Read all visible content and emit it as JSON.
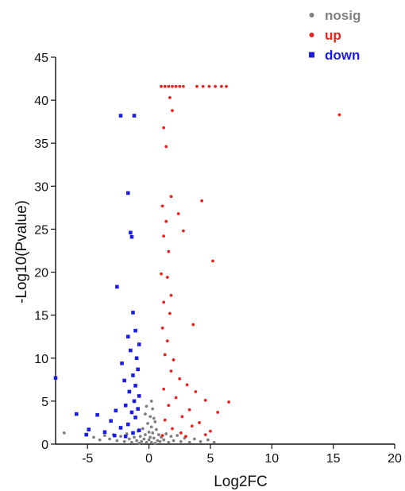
{
  "chart_data": {
    "type": "scatter",
    "xlabel": "Log2FC",
    "ylabel": "-Log10(Pvalue)",
    "xlim": [
      -7.6,
      20
    ],
    "ylim": [
      0,
      45
    ],
    "x_ticks": [
      {
        "value": -5,
        "label": "-5"
      },
      {
        "value": 0,
        "label": "0"
      },
      {
        "value": 5,
        "label": "5"
      },
      {
        "value": 10,
        "label": "10"
      },
      {
        "value": 15,
        "label": "15"
      },
      {
        "value": 20,
        "label": "20"
      }
    ],
    "y_ticks": [
      0,
      5,
      10,
      15,
      20,
      25,
      30,
      35,
      40,
      45
    ],
    "grid": false,
    "legend_position": "top-right",
    "series": [
      {
        "name": "nosig",
        "color": "#808080",
        "marker": "circle",
        "points": [
          [
            -6.9,
            1.3
          ],
          [
            -4.5,
            0.8
          ],
          [
            -4.0,
            0.5
          ],
          [
            -3.6,
            1.0
          ],
          [
            -3.2,
            0.6
          ],
          [
            -2.9,
            1.1
          ],
          [
            -2.6,
            0.4
          ],
          [
            -2.3,
            0.9
          ],
          [
            -2.0,
            0.3
          ],
          [
            -1.8,
            1.2
          ],
          [
            -1.6,
            0.6
          ],
          [
            -1.4,
            0.2
          ],
          [
            -1.2,
            0.8
          ],
          [
            -1.0,
            0.4
          ],
          [
            -0.9,
            1.5
          ],
          [
            -0.8,
            0.1
          ],
          [
            -0.7,
            0.9
          ],
          [
            -0.6,
            0.3
          ],
          [
            -0.5,
            1.8
          ],
          [
            -0.4,
            0.6
          ],
          [
            -0.3,
            1.1
          ],
          [
            -0.2,
            0.2
          ],
          [
            -0.1,
            2.4
          ],
          [
            0.0,
            0.5
          ],
          [
            0.0,
            1.4
          ],
          [
            0.1,
            3.2
          ],
          [
            0.1,
            0.8
          ],
          [
            0.2,
            2.0
          ],
          [
            0.2,
            0.2
          ],
          [
            0.3,
            1.3
          ],
          [
            0.3,
            4.1
          ],
          [
            0.4,
            0.7
          ],
          [
            0.5,
            2.6
          ],
          [
            0.5,
            0.1
          ],
          [
            0.6,
            1.7
          ],
          [
            0.7,
            0.4
          ],
          [
            0.8,
            1.1
          ],
          [
            0.9,
            0.3
          ],
          [
            1.0,
            0.8
          ],
          [
            1.2,
            0.5
          ],
          [
            1.4,
            1.2
          ],
          [
            1.6,
            0.2
          ],
          [
            1.8,
            0.9
          ],
          [
            2.0,
            0.4
          ],
          [
            2.3,
            1.0
          ],
          [
            2.6,
            0.3
          ],
          [
            2.9,
            0.7
          ],
          [
            3.3,
            0.2
          ],
          [
            3.7,
            0.6
          ],
          [
            4.2,
            0.3
          ],
          [
            4.8,
            0.5
          ],
          [
            5.3,
            0.2
          ],
          [
            -0.3,
            3.5
          ],
          [
            0.2,
            5.0
          ],
          [
            -0.2,
            4.4
          ],
          [
            0.4,
            3.0
          ]
        ]
      },
      {
        "name": "up",
        "color": "#e8231f",
        "marker": "circle",
        "points": [
          [
            1.0,
            41.6
          ],
          [
            1.3,
            41.6
          ],
          [
            1.6,
            41.6
          ],
          [
            1.9,
            41.6
          ],
          [
            2.2,
            41.6
          ],
          [
            2.5,
            41.6
          ],
          [
            2.8,
            41.6
          ],
          [
            3.9,
            41.6
          ],
          [
            4.4,
            41.6
          ],
          [
            4.9,
            41.6
          ],
          [
            5.4,
            41.6
          ],
          [
            5.9,
            41.6
          ],
          [
            6.3,
            41.6
          ],
          [
            15.5,
            38.3
          ],
          [
            1.7,
            40.3
          ],
          [
            1.9,
            38.8
          ],
          [
            1.2,
            36.8
          ],
          [
            1.4,
            34.6
          ],
          [
            1.8,
            28.8
          ],
          [
            4.3,
            28.3
          ],
          [
            1.1,
            27.7
          ],
          [
            2.4,
            26.8
          ],
          [
            1.4,
            25.9
          ],
          [
            2.8,
            24.8
          ],
          [
            1.2,
            24.2
          ],
          [
            1.6,
            22.4
          ],
          [
            5.2,
            21.3
          ],
          [
            1.0,
            19.8
          ],
          [
            1.5,
            19.4
          ],
          [
            1.8,
            17.3
          ],
          [
            1.2,
            16.5
          ],
          [
            1.7,
            15.2
          ],
          [
            3.6,
            13.9
          ],
          [
            1.1,
            13.5
          ],
          [
            1.5,
            12.0
          ],
          [
            1.3,
            10.4
          ],
          [
            2.0,
            9.8
          ],
          [
            1.8,
            8.5
          ],
          [
            2.5,
            7.6
          ],
          [
            3.1,
            6.9
          ],
          [
            1.2,
            6.4
          ],
          [
            3.8,
            6.1
          ],
          [
            2.2,
            5.4
          ],
          [
            4.6,
            5.1
          ],
          [
            6.5,
            4.9
          ],
          [
            1.6,
            4.5
          ],
          [
            3.3,
            4.0
          ],
          [
            5.6,
            3.7
          ],
          [
            2.7,
            3.2
          ],
          [
            1.3,
            2.8
          ],
          [
            4.1,
            2.5
          ],
          [
            3.5,
            2.1
          ],
          [
            1.9,
            1.8
          ],
          [
            5.0,
            1.5
          ],
          [
            2.6,
            1.3
          ],
          [
            4.6,
            1.1
          ],
          [
            1.1,
            1.0
          ],
          [
            3.0,
            0.9
          ]
        ]
      },
      {
        "name": "down",
        "color": "#1c1ce0",
        "marker": "square",
        "points": [
          [
            -2.3,
            38.2
          ],
          [
            -1.2,
            38.2
          ],
          [
            -1.7,
            29.2
          ],
          [
            -1.5,
            24.6
          ],
          [
            -1.4,
            24.1
          ],
          [
            -2.6,
            18.3
          ],
          [
            -1.3,
            15.3
          ],
          [
            -1.1,
            13.2
          ],
          [
            -1.7,
            12.5
          ],
          [
            -0.8,
            11.6
          ],
          [
            -1.5,
            10.9
          ],
          [
            -1.0,
            10.0
          ],
          [
            -2.2,
            9.4
          ],
          [
            -0.9,
            8.7
          ],
          [
            -1.3,
            8.0
          ],
          [
            -2.0,
            7.4
          ],
          [
            -7.6,
            7.7
          ],
          [
            -1.1,
            6.8
          ],
          [
            -1.6,
            6.1
          ],
          [
            -0.8,
            5.6
          ],
          [
            -1.2,
            5.0
          ],
          [
            -1.9,
            4.5
          ],
          [
            -0.9,
            4.1
          ],
          [
            -1.4,
            3.7
          ],
          [
            -2.7,
            3.9
          ],
          [
            -5.9,
            3.5
          ],
          [
            -4.2,
            3.4
          ],
          [
            -1.1,
            3.1
          ],
          [
            -3.1,
            2.7
          ],
          [
            -1.7,
            2.3
          ],
          [
            -2.3,
            1.9
          ],
          [
            -4.9,
            1.7
          ],
          [
            -0.8,
            1.6
          ],
          [
            -3.6,
            1.4
          ],
          [
            -1.3,
            1.3
          ],
          [
            -5.1,
            1.1
          ],
          [
            -2.8,
            1.0
          ],
          [
            -1.9,
            0.9
          ]
        ]
      }
    ]
  }
}
